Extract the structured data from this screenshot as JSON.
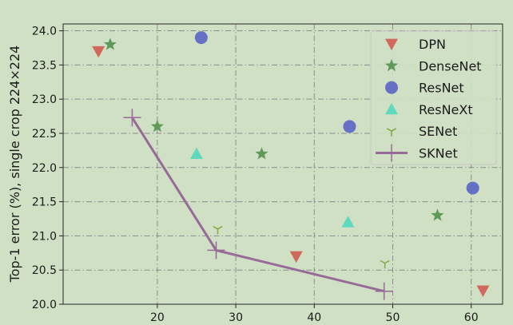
{
  "chart_data": {
    "type": "scatter",
    "ylabel": "Top-1 error (%), single crop 224×224",
    "xlabel": "",
    "xlim": [
      8,
      64
    ],
    "ylim": [
      20.0,
      24.1
    ],
    "xticks": [
      "20",
      "30",
      "40",
      "50",
      "60"
    ],
    "yticks": [
      "20.0",
      "20.5",
      "21.0",
      "21.5",
      "22.0",
      "22.5",
      "23.0",
      "23.5",
      "24.0"
    ],
    "grid": true,
    "legend_position": "top-right",
    "series": [
      {
        "name": "DPN",
        "marker": "triangle-down",
        "color": "#d0695c",
        "points": [
          {
            "x": 12.5,
            "y": 23.7
          },
          {
            "x": 37.7,
            "y": 20.7
          },
          {
            "x": 61.5,
            "y": 20.2
          }
        ]
      },
      {
        "name": "DenseNet",
        "marker": "star",
        "color": "#5f9a59",
        "points": [
          {
            "x": 14.0,
            "y": 23.8
          },
          {
            "x": 20.0,
            "y": 22.6
          },
          {
            "x": 33.3,
            "y": 22.2
          },
          {
            "x": 55.7,
            "y": 21.3
          }
        ]
      },
      {
        "name": "ResNet",
        "marker": "circle",
        "color": "#6670c4",
        "points": [
          {
            "x": 25.6,
            "y": 23.9
          },
          {
            "x": 44.5,
            "y": 22.6
          },
          {
            "x": 60.2,
            "y": 21.7
          }
        ]
      },
      {
        "name": "ResNeXt",
        "marker": "triangle-up",
        "color": "#5fd9bd",
        "points": [
          {
            "x": 25.0,
            "y": 22.2
          },
          {
            "x": 44.3,
            "y": 21.2
          }
        ]
      },
      {
        "name": "SENet",
        "marker": "tri-down",
        "color": "#7faa45",
        "points": [
          {
            "x": 27.7,
            "y": 21.1
          },
          {
            "x": 49.0,
            "y": 20.6
          }
        ]
      },
      {
        "name": "SKNet",
        "marker": "plus",
        "color": "#976a98",
        "line": true,
        "points": [
          {
            "x": 16.8,
            "y": 22.73
          },
          {
            "x": 27.5,
            "y": 20.79
          },
          {
            "x": 48.9,
            "y": 20.19
          }
        ]
      }
    ]
  }
}
